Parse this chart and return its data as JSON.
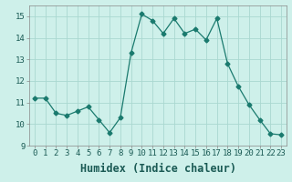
{
  "x": [
    0,
    1,
    2,
    3,
    4,
    5,
    6,
    7,
    8,
    9,
    10,
    11,
    12,
    13,
    14,
    15,
    16,
    17,
    18,
    19,
    20,
    21,
    22,
    23
  ],
  "y": [
    11.2,
    11.2,
    10.5,
    10.4,
    10.6,
    10.8,
    10.2,
    9.6,
    10.3,
    13.3,
    15.1,
    14.8,
    14.2,
    14.9,
    14.2,
    14.4,
    13.9,
    14.9,
    12.8,
    11.75,
    10.9,
    10.2,
    9.55,
    9.5
  ],
  "line_color": "#1a7a6e",
  "marker": "D",
  "marker_size": 2.5,
  "bg_color": "#cef0ea",
  "grid_color": "#aad8d0",
  "xlabel": "Humidex (Indice chaleur)",
  "xlim": [
    -0.5,
    23.5
  ],
  "ylim": [
    9,
    15.5
  ],
  "yticks": [
    9,
    10,
    11,
    12,
    13,
    14,
    15
  ],
  "xticks": [
    0,
    1,
    2,
    3,
    4,
    5,
    6,
    7,
    8,
    9,
    10,
    11,
    12,
    13,
    14,
    15,
    16,
    17,
    18,
    19,
    20,
    21,
    22,
    23
  ],
  "tick_fontsize": 6.5,
  "xlabel_fontsize": 8.5
}
